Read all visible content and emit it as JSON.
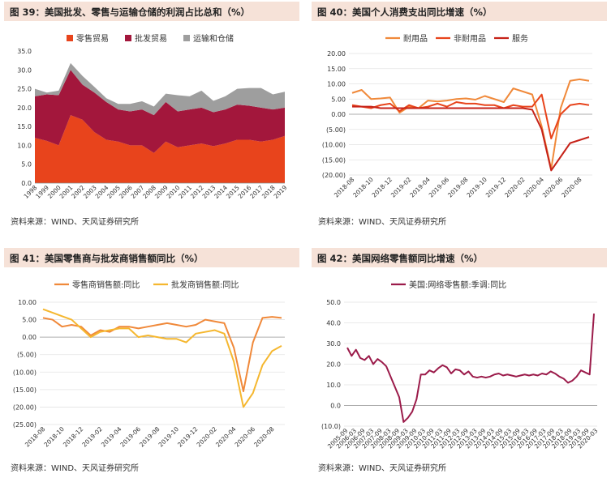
{
  "panels": [
    {
      "title": "图 39：美国批发、零售与运输仓储的利润占比总和（%）",
      "source": "资料来源：WIND、天风证券研究所",
      "chart_data": {
        "type": "area",
        "stacked": true,
        "categories": [
          "1998",
          "1999",
          "2000",
          "2001",
          "2002",
          "2003",
          "2004",
          "2005",
          "2006",
          "2007",
          "2008",
          "2009",
          "2010",
          "2011",
          "2012",
          "2013",
          "2014",
          "2015",
          "2016",
          "2017",
          "2018",
          "2019"
        ],
        "series": [
          {
            "name": "零售贸易",
            "color": "#e8441c",
            "values": [
              12,
              11.2,
              10,
              18,
              16.8,
              13.5,
              11.5,
              11,
              10,
              10,
              8,
              11,
              9.5,
              10,
              10.5,
              9.8,
              10.5,
              11.5,
              11.5,
              11,
              11.5,
              12.5
            ]
          },
          {
            "name": "批发贸易",
            "color": "#a3173c",
            "values": [
              11,
              12.3,
              13.3,
              12,
              9.3,
              10.5,
              10,
              8.5,
              9,
              9.5,
              10,
              10.5,
              9.5,
              9.5,
              9.5,
              9,
              9,
              9.3,
              9,
              9,
              8,
              7.5
            ]
          },
          {
            "name": "运输和仓储",
            "color": "#9e9e9e",
            "values": [
              2,
              0.5,
              1.2,
              1.8,
              2.3,
              1.5,
              1,
              1.5,
              2,
              2.2,
              2.3,
              2.2,
              4.3,
              3.5,
              4.5,
              3,
              3.5,
              4.2,
              4.7,
              5.2,
              4,
              4.2
            ]
          }
        ],
        "ylim": [
          0,
          35
        ],
        "yticks": [
          "0.0",
          "5.0",
          "10.0",
          "15.0",
          "20.0",
          "25.0",
          "30.0",
          "35.0"
        ],
        "legend": "top"
      }
    },
    {
      "title": "图 40：美国个人消费支出同比增速（%）",
      "source": "资料来源：WIND、天风证券研究所",
      "chart_data": {
        "type": "line",
        "categories": [
          "2018-08",
          "2018-09",
          "2018-10",
          "2018-11",
          "2018-12",
          "2019-01",
          "2019-02",
          "2019-03",
          "2019-04",
          "2019-05",
          "2019-06",
          "2019-07",
          "2019-08",
          "2019-09",
          "2019-10",
          "2019-11",
          "2019-12",
          "2020-01",
          "2020-02",
          "2020-03",
          "2020-04",
          "2020-05",
          "2020-06",
          "2020-07",
          "2020-08",
          "2020-09"
        ],
        "xticks": [
          "2018-08",
          "2018-10",
          "2018-12",
          "2019-02",
          "2019-04",
          "2019-06",
          "2019-08",
          "2019-10",
          "2019-12",
          "2020-02",
          "2020-04",
          "2020-06",
          "2020-08"
        ],
        "series": [
          {
            "name": "耐用品",
            "color": "#f0893a",
            "values": [
              7,
              8,
              5,
              5.2,
              5.5,
              0.5,
              2.5,
              2,
              4.5,
              4.2,
              4.5,
              5,
              5.2,
              4.8,
              6,
              5,
              4,
              8.5,
              7.5,
              6.5,
              -4,
              -18,
              2,
              11,
              11.5,
              11
            ]
          },
          {
            "name": "非耐用品",
            "color": "#e8441c",
            "values": [
              3,
              2.5,
              2,
              3,
              3.5,
              1,
              3,
              2,
              2.5,
              3.5,
              2.5,
              4,
              3.5,
              3.5,
              3,
              3,
              2,
              3,
              2.5,
              2.5,
              6.5,
              -8,
              0,
              3,
              3.5,
              3
            ]
          },
          {
            "name": "服务",
            "color": "#c62218",
            "values": [
              2.5,
              2.5,
              2.5,
              2,
              2,
              2,
              2,
              2,
              2,
              2,
              2,
              2,
              2,
              2,
              2,
              2,
              2,
              2,
              2,
              1.5,
              -5,
              -18.5,
              -14,
              -9.5,
              -8.5,
              -7.5
            ]
          }
        ],
        "ylim": [
          -20,
          20
        ],
        "yticks": [
          "20.00",
          "15.00",
          "10.00",
          "5.00",
          "0.00",
          "(5.00)",
          "(10.00)",
          "(15.00)",
          "(20.00)"
        ],
        "legend": "top"
      }
    },
    {
      "title": "图 41：美国零售商与批发商销售额同比（%）",
      "source": "资料来源：WIND、天风证券研究所",
      "chart_data": {
        "type": "line",
        "categories": [
          "2018-08",
          "2018-09",
          "2018-10",
          "2018-11",
          "2018-12",
          "2019-01",
          "2019-02",
          "2019-03",
          "2019-04",
          "2019-05",
          "2019-06",
          "2019-07",
          "2019-08",
          "2019-09",
          "2019-10",
          "2019-11",
          "2019-12",
          "2020-01",
          "2020-02",
          "2020-03",
          "2020-04",
          "2020-05",
          "2020-06",
          "2020-07",
          "2020-08",
          "2020-09"
        ],
        "xticks": [
          "2018-08",
          "2018-10",
          "2018-12",
          "2019-02",
          "2019-04",
          "2019-06",
          "2019-08",
          "2019-10",
          "2019-12",
          "2020-02",
          "2020-04",
          "2020-06",
          "2020-08"
        ],
        "series": [
          {
            "name": "零售商销售额:同比",
            "color": "#f0893a",
            "values": [
              5.5,
              5,
              3,
              3.5,
              3,
              0.5,
              2,
              1.5,
              3,
              3,
              2.5,
              3,
              3.5,
              4,
              3.5,
              3,
              3.5,
              5,
              4.5,
              4,
              -3,
              -15.5,
              -1.5,
              5.5,
              5.8,
              5.5
            ]
          },
          {
            "name": "批发商销售额:同比",
            "color": "#f5b72f",
            "values": [
              8,
              7,
              6,
              5,
              2.5,
              0,
              1.5,
              2,
              2.5,
              2.5,
              0,
              0.5,
              0,
              -0.5,
              -0.5,
              -1.5,
              1,
              1.5,
              2,
              1,
              -7,
              -20,
              -16,
              -8,
              -4,
              -2.5
            ]
          }
        ],
        "ylim": [
          -25,
          10
        ],
        "yticks": [
          "10.00",
          "5.00",
          "0.00",
          "(5.00)",
          "(10.00)",
          "(15.00)",
          "(20.00)",
          "(25.00)"
        ],
        "legend": "top"
      }
    },
    {
      "title": "图 42：美国网络零售额同比增速（%）",
      "source": "资料来源：WIND、天风证券研究所",
      "chart_data": {
        "type": "line",
        "xticks": [
          "2005-09",
          "2006-03",
          "2006-09",
          "2007-03",
          "2007-09",
          "2008-03",
          "2008-09",
          "2009-03",
          "2009-09",
          "2010-03",
          "2010-09",
          "2011-03",
          "2011-09",
          "2012-03",
          "2012-09",
          "2013-03",
          "2013-09",
          "2014-03",
          "2014-09",
          "2015-03",
          "2015-09",
          "2016-03",
          "2016-09",
          "2017-03",
          "2017-09",
          "2018-03",
          "2018-09",
          "2019-03",
          "2019-09",
          "2020-03"
        ],
        "series": [
          {
            "name": "美国:网络零售额:季调:同比",
            "color": "#9b1b4a",
            "values": [
              28,
              24,
              27,
              23,
              22,
              24,
              20,
              22.5,
              21,
              19,
              14,
              9,
              4,
              -8,
              -6,
              -3,
              3,
              15,
              15,
              17,
              16,
              18,
              19.5,
              18.5,
              15.5,
              17.5,
              17,
              15,
              16.5,
              14,
              13.5,
              14,
              13.5,
              14,
              15,
              15.5,
              14.5,
              15,
              14.5,
              14,
              14.5,
              15,
              14.5,
              15,
              14.5,
              15.5,
              15,
              16.5,
              15.5,
              14,
              13,
              11,
              12,
              14,
              17,
              16,
              15,
              44.5
            ]
          }
        ],
        "ylim": [
          -10,
          50
        ],
        "yticks": [
          "50.0",
          "40.0",
          "30.0",
          "20.0",
          "10.0",
          "0.0",
          "(10.0)"
        ],
        "legend": "top"
      }
    }
  ]
}
